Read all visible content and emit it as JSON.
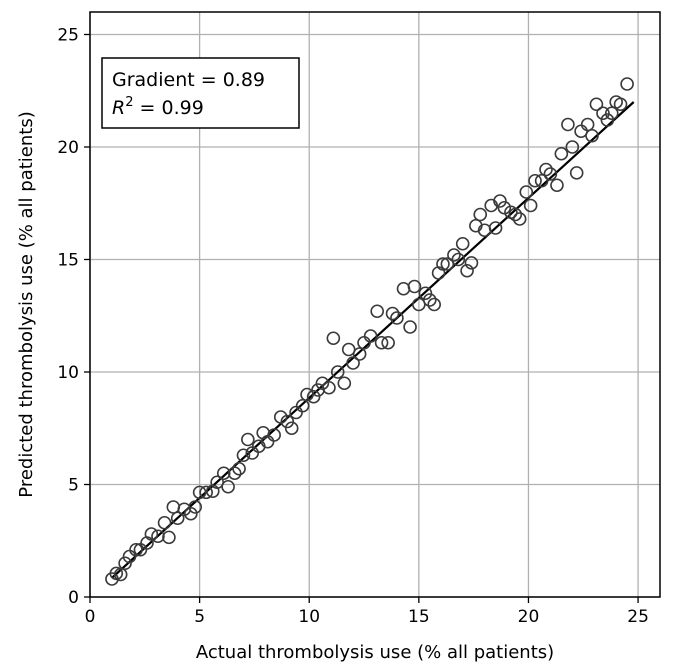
{
  "chart_data": {
    "type": "scatter",
    "xlabel": "Actual thrombolysis use (% all patients)",
    "ylabel": "Predicted thrombolysis use (% all patients)",
    "xlim": [
      0,
      26
    ],
    "ylim": [
      0,
      26
    ],
    "xticks": [
      "0",
      "5",
      "10",
      "15",
      "20",
      "25"
    ],
    "yticks": [
      "0",
      "5",
      "10",
      "15",
      "20",
      "25"
    ],
    "grid": true,
    "annotation": {
      "gradient_label": "Gradient = 0.89",
      "r2_prefix": "R",
      "r2_exp": "2",
      "r2_value": " = 0.99"
    },
    "fit_line": {
      "x": [
        1.0,
        24.8
      ],
      "y": [
        0.85,
        22.0
      ]
    },
    "points": [
      [
        1.0,
        0.8
      ],
      [
        1.2,
        1.05
      ],
      [
        1.4,
        1.0
      ],
      [
        1.6,
        1.5
      ],
      [
        1.8,
        1.8
      ],
      [
        2.1,
        2.1
      ],
      [
        2.3,
        2.1
      ],
      [
        2.6,
        2.4
      ],
      [
        2.8,
        2.8
      ],
      [
        3.1,
        2.7
      ],
      [
        3.4,
        3.3
      ],
      [
        3.6,
        2.65
      ],
      [
        3.8,
        4.0
      ],
      [
        4.0,
        3.5
      ],
      [
        4.3,
        3.9
      ],
      [
        4.6,
        3.7
      ],
      [
        4.8,
        4.0
      ],
      [
        5.0,
        4.65
      ],
      [
        5.3,
        4.65
      ],
      [
        5.6,
        4.7
      ],
      [
        5.8,
        5.1
      ],
      [
        6.1,
        5.5
      ],
      [
        6.3,
        4.9
      ],
      [
        6.6,
        5.5
      ],
      [
        6.8,
        5.7
      ],
      [
        7.0,
        6.3
      ],
      [
        7.2,
        7.0
      ],
      [
        7.4,
        6.4
      ],
      [
        7.7,
        6.7
      ],
      [
        7.9,
        7.3
      ],
      [
        8.1,
        6.9
      ],
      [
        8.4,
        7.2
      ],
      [
        8.7,
        8.0
      ],
      [
        9.0,
        7.8
      ],
      [
        9.2,
        7.5
      ],
      [
        9.4,
        8.2
      ],
      [
        9.7,
        8.5
      ],
      [
        9.9,
        9.0
      ],
      [
        10.2,
        8.9
      ],
      [
        10.4,
        9.2
      ],
      [
        10.6,
        9.5
      ],
      [
        10.9,
        9.3
      ],
      [
        11.1,
        11.5
      ],
      [
        11.3,
        10.0
      ],
      [
        11.6,
        9.5
      ],
      [
        11.8,
        11.0
      ],
      [
        12.0,
        10.4
      ],
      [
        12.3,
        10.8
      ],
      [
        12.5,
        11.3
      ],
      [
        12.8,
        11.6
      ],
      [
        13.1,
        12.7
      ],
      [
        13.3,
        11.3
      ],
      [
        13.6,
        11.3
      ],
      [
        13.8,
        12.6
      ],
      [
        14.0,
        12.4
      ],
      [
        14.3,
        13.7
      ],
      [
        14.6,
        12.0
      ],
      [
        14.8,
        13.8
      ],
      [
        15.0,
        13.0
      ],
      [
        15.3,
        13.5
      ],
      [
        15.5,
        13.2
      ],
      [
        15.7,
        13.0
      ],
      [
        15.9,
        14.4
      ],
      [
        16.1,
        14.8
      ],
      [
        16.3,
        14.8
      ],
      [
        16.6,
        15.2
      ],
      [
        16.8,
        15.0
      ],
      [
        17.0,
        15.7
      ],
      [
        17.2,
        14.5
      ],
      [
        17.4,
        14.85
      ],
      [
        17.6,
        16.5
      ],
      [
        17.8,
        17.0
      ],
      [
        18.0,
        16.3
      ],
      [
        18.3,
        17.4
      ],
      [
        18.5,
        16.4
      ],
      [
        18.7,
        17.6
      ],
      [
        18.9,
        17.3
      ],
      [
        19.2,
        17.1
      ],
      [
        19.4,
        17.0
      ],
      [
        19.6,
        16.8
      ],
      [
        19.9,
        18.0
      ],
      [
        20.1,
        17.4
      ],
      [
        20.3,
        18.5
      ],
      [
        20.6,
        18.5
      ],
      [
        20.8,
        19.0
      ],
      [
        21.0,
        18.8
      ],
      [
        21.3,
        18.3
      ],
      [
        21.5,
        19.7
      ],
      [
        21.8,
        21.0
      ],
      [
        22.0,
        20.0
      ],
      [
        22.2,
        18.85
      ],
      [
        22.4,
        20.7
      ],
      [
        22.7,
        21.0
      ],
      [
        22.9,
        20.5
      ],
      [
        23.1,
        21.9
      ],
      [
        23.4,
        21.5
      ],
      [
        23.6,
        21.2
      ],
      [
        23.8,
        21.5
      ],
      [
        24.0,
        22.0
      ],
      [
        24.2,
        21.9
      ],
      [
        24.5,
        22.8
      ]
    ]
  }
}
